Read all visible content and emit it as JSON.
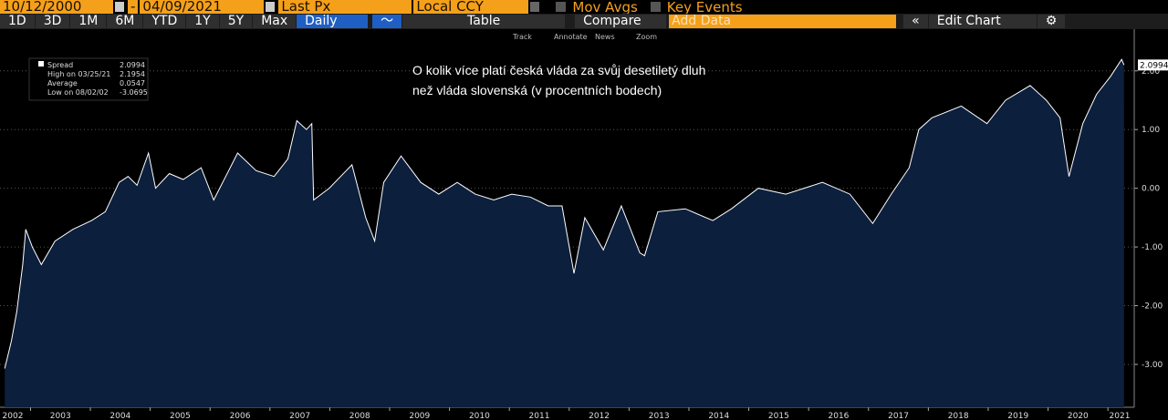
{
  "toolbar": {
    "start_date": "10/12/2000",
    "separator": "-",
    "end_date": "04/09/2021",
    "field": "Last Px",
    "currency": "Local CCY",
    "mov_avgs": "Mov Avgs",
    "key_events": "Key Events",
    "ranges": [
      "1D",
      "3D",
      "1M",
      "6M",
      "YTD",
      "1Y",
      "5Y",
      "Max"
    ],
    "period": "Daily",
    "table": "Table",
    "compare": "Compare",
    "add_data": "Add Data",
    "edit_chart": "Edit Chart",
    "tools": [
      "Track",
      "Annotate",
      "News",
      "Zoom"
    ]
  },
  "chart_data": {
    "type": "area",
    "annotation": [
      "O kolik více platí česká vláda za svůj desetiletý dluh",
      "než vláda slovenská (v procentních bodech)"
    ],
    "stats": [
      {
        "label": "High on 03/25/21",
        "value": 2.1954
      },
      {
        "label": "Average",
        "value": 0.0547
      },
      {
        "label": "Low on 08/02/02",
        "value": -3.0695
      }
    ],
    "last_value": 2.0994,
    "x": [
      2002.57,
      2002.68,
      2002.77,
      2002.87,
      2002.92,
      2003.03,
      2003.18,
      2003.41,
      2003.71,
      2004.02,
      2004.25,
      2004.48,
      2004.63,
      2004.78,
      2004.97,
      2005.09,
      2005.32,
      2005.55,
      2005.85,
      2006.06,
      2006.31,
      2006.46,
      2006.77,
      2007.07,
      2007.3,
      2007.45,
      2007.61,
      2007.7,
      2007.73,
      2007.99,
      2008.37,
      2008.6,
      2008.75,
      2008.9,
      2009.19,
      2009.52,
      2009.82,
      2010.13,
      2010.43,
      2010.74,
      2011.04,
      2011.35,
      2011.65,
      2011.88,
      2012.08,
      2012.26,
      2012.57,
      2012.87,
      2013.18,
      2013.26,
      2013.48,
      2013.94,
      2014.4,
      2014.71,
      2015.16,
      2015.62,
      2016.23,
      2016.69,
      2017.07,
      2017.38,
      2017.68,
      2017.84,
      2018.06,
      2018.55,
      2018.98,
      2019.29,
      2019.7,
      2019.97,
      2020.2,
      2020.35,
      2020.58,
      2020.81,
      2021.04,
      2021.23,
      2021.27
    ],
    "series": [
      {
        "name": "Spread",
        "color": "#ffffff",
        "fill": "#0c1f3d",
        "values": [
          -3.07,
          -2.6,
          -2.1,
          -1.3,
          -0.7,
          -1.0,
          -1.3,
          -0.9,
          -0.7,
          -0.55,
          -0.4,
          0.1,
          0.2,
          0.05,
          0.6,
          0.0,
          0.25,
          0.15,
          0.35,
          -0.2,
          0.3,
          0.6,
          0.3,
          0.2,
          0.5,
          1.15,
          1.0,
          1.1,
          -0.2,
          0.0,
          0.4,
          -0.5,
          -0.9,
          0.1,
          0.55,
          0.1,
          -0.1,
          0.1,
          -0.1,
          -0.2,
          -0.1,
          -0.15,
          -0.3,
          -0.3,
          -1.45,
          -0.5,
          -1.05,
          -0.3,
          -1.1,
          -1.15,
          -0.4,
          -0.35,
          -0.55,
          -0.35,
          0.0,
          -0.1,
          0.1,
          -0.1,
          -0.6,
          -0.1,
          0.35,
          1.0,
          1.2,
          1.4,
          1.1,
          1.5,
          1.75,
          1.5,
          1.2,
          0.2,
          1.1,
          1.6,
          1.9,
          2.1954,
          2.0994
        ]
      }
    ],
    "xlim": [
      2002.49,
      2021.44
    ],
    "xticks": [
      2002,
      2003,
      2004,
      2005,
      2006,
      2007,
      2008,
      2009,
      2010,
      2011,
      2012,
      2013,
      2014,
      2015,
      2016,
      2017,
      2018,
      2019,
      2020,
      2021
    ],
    "ylim": [
      -3.73,
      2.71
    ],
    "yticks": [
      {
        "value": 2,
        "label": "2.00"
      },
      {
        "value": 1,
        "label": "1.00"
      },
      {
        "value": 0,
        "label": "0.00"
      },
      {
        "value": -1,
        "label": "-1.00"
      },
      {
        "value": -2,
        "label": "-2.00"
      },
      {
        "value": -3,
        "label": "-3.00"
      }
    ],
    "grid": true
  }
}
